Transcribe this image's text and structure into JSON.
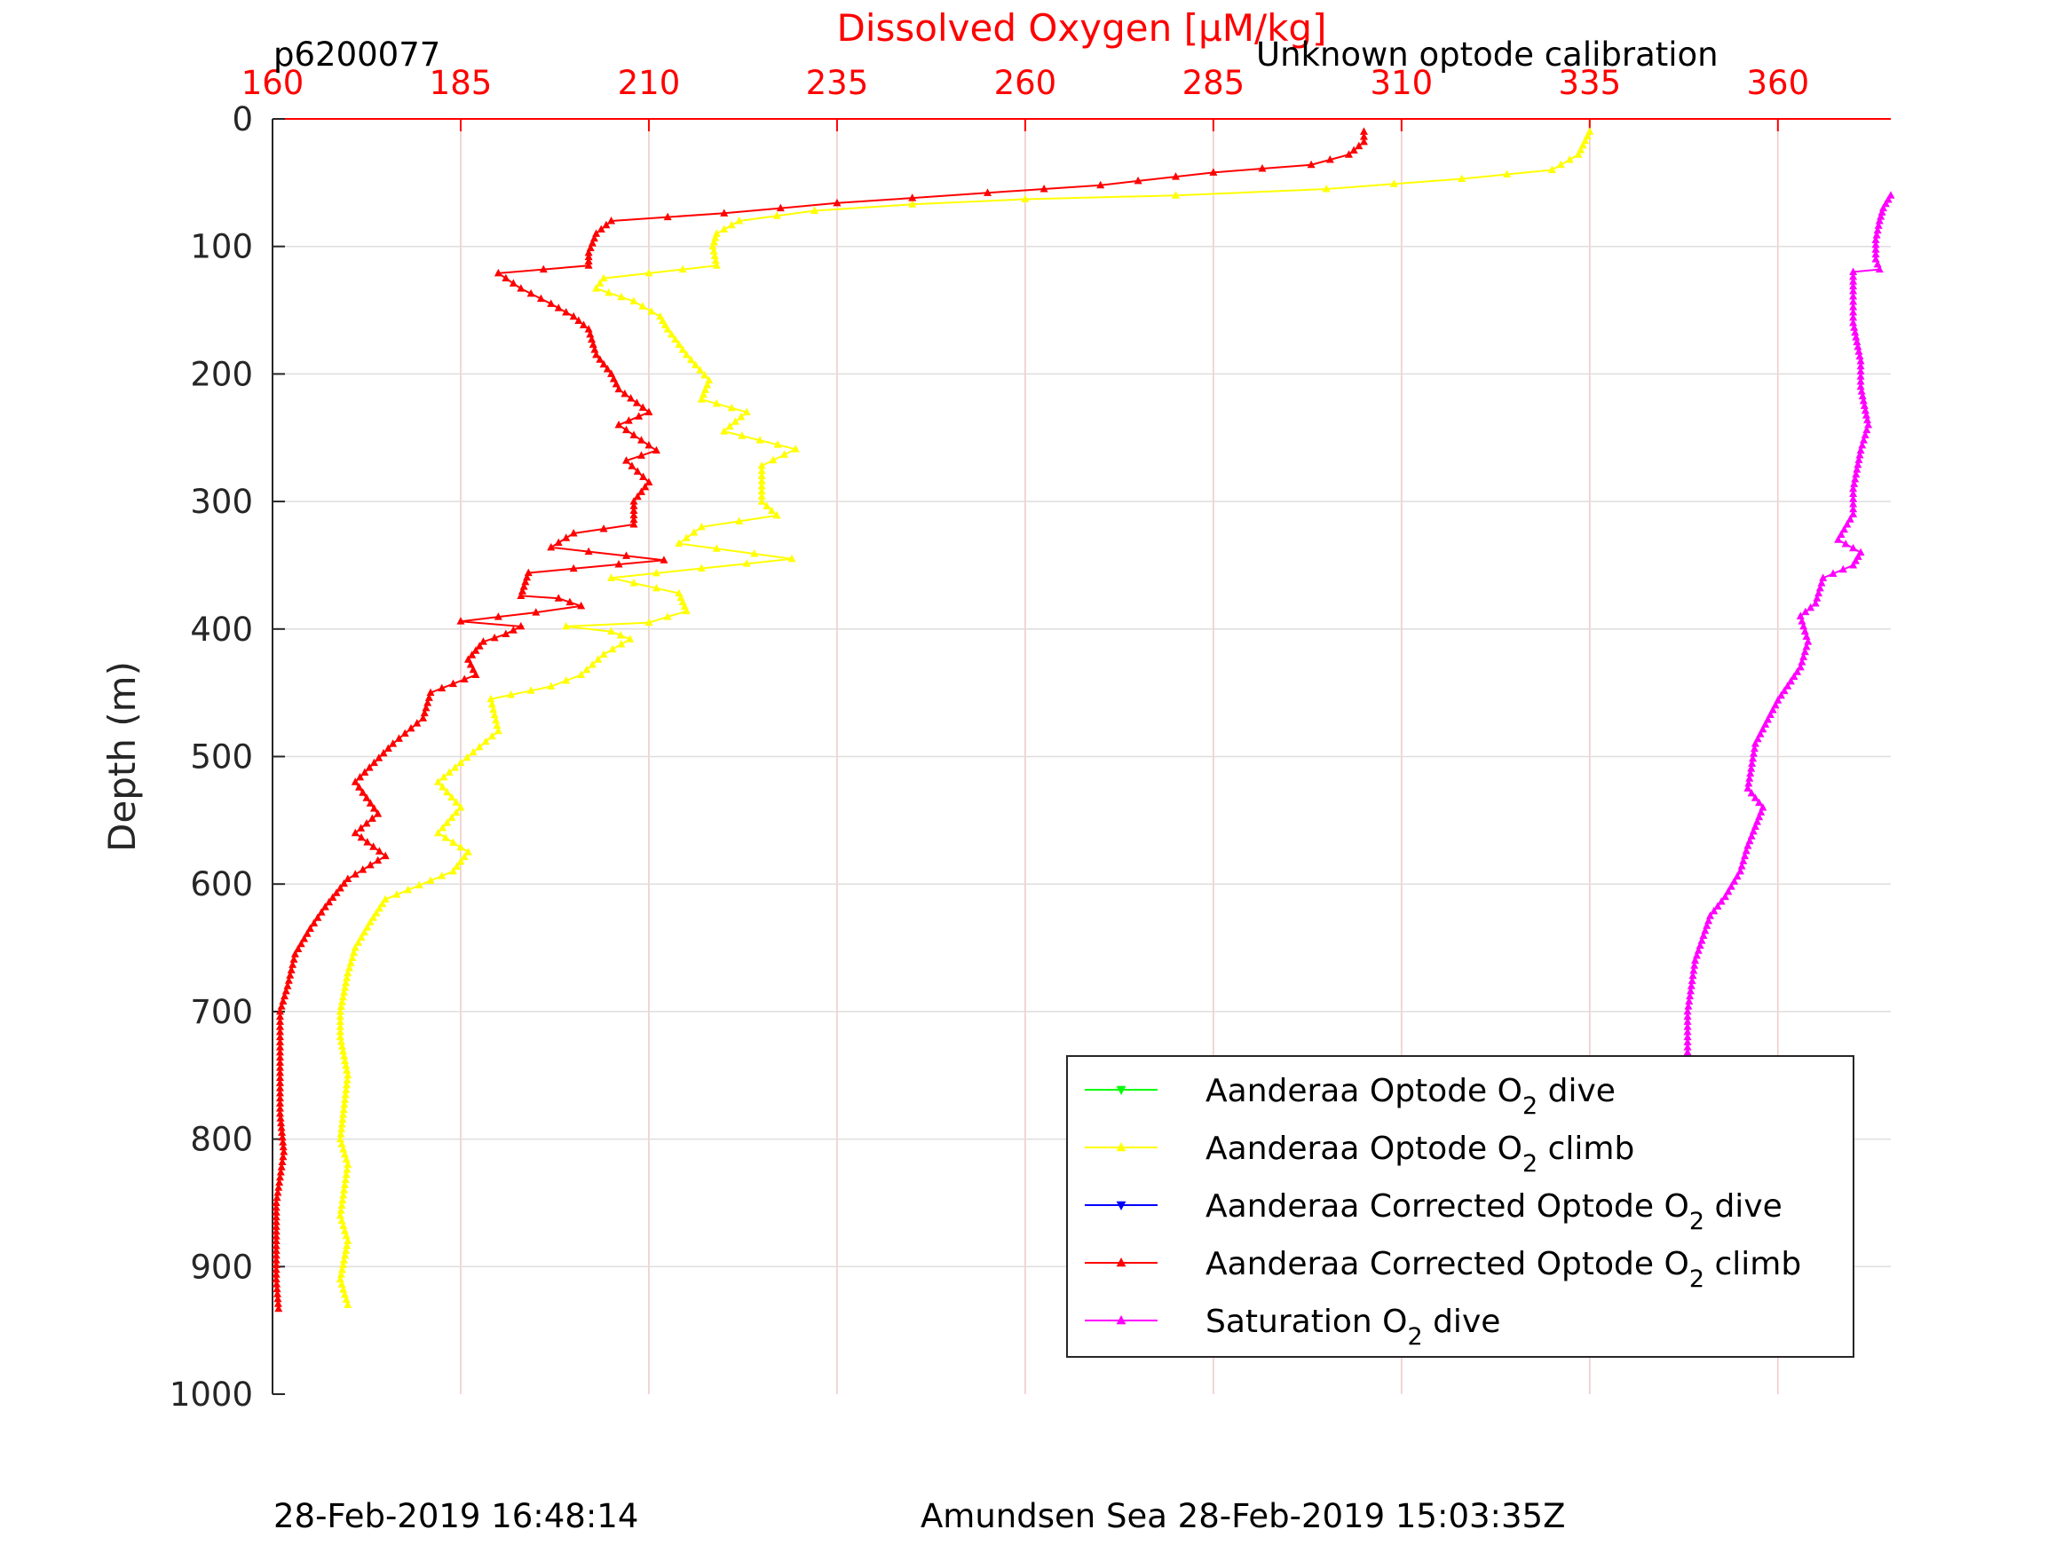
{
  "header": {
    "profile_id": "p6200077",
    "calibration_note": "Unknown optode calibration"
  },
  "footer": {
    "plot_timestamp": "28-Feb-2019 16:48:14",
    "location_time": "Amundsen Sea 28-Feb-2019 15:03:35Z"
  },
  "chart_data": {
    "type": "line",
    "xlabel": "Dissolved Oxygen [μM/kg]",
    "ylabel": "Depth (m)",
    "xlim": [
      160,
      375
    ],
    "ylim": [
      0,
      1000
    ],
    "y_reversed": true,
    "x_axis_position": "top",
    "x_ticks": [
      160,
      185,
      210,
      235,
      260,
      285,
      310,
      335,
      360
    ],
    "y_ticks": [
      0,
      100,
      200,
      300,
      400,
      500,
      600,
      700,
      800,
      900,
      1000
    ],
    "grid": true,
    "legend_position": "bottom-right",
    "colors": {
      "x_axis": "#ff0000",
      "grid": "#f0c8c8",
      "hgrid": "#dedede",
      "axes": "#262626"
    },
    "legend": [
      {
        "prefix": "Aanderaa Optode O",
        "sub": "2",
        "suffix": " dive",
        "color": "#00ff00",
        "marker": "triangle-down"
      },
      {
        "prefix": "Aanderaa Optode O",
        "sub": "2",
        "suffix": " climb",
        "color": "#ffff00",
        "marker": "triangle-up"
      },
      {
        "prefix": "Aanderaa Corrected Optode O",
        "sub": "2",
        "suffix": " dive",
        "color": "#0000ff",
        "marker": "triangle-down"
      },
      {
        "prefix": "Aanderaa Corrected Optode O",
        "sub": "2",
        "suffix": " climb",
        "color": "#ff0000",
        "marker": "triangle-up"
      },
      {
        "prefix": "Saturation O",
        "sub": "2",
        "suffix": " dive",
        "color": "#ff00ff",
        "marker": "triangle-up"
      }
    ],
    "series": [
      {
        "name": "Aanderaa Optode O2 climb",
        "color": "#ffff00",
        "points": [
          [
            335,
            10
          ],
          [
            333.5,
            28
          ],
          [
            330,
            40
          ],
          [
            318,
            47
          ],
          [
            300,
            55
          ],
          [
            280,
            60
          ],
          [
            260,
            63
          ],
          [
            245,
            67
          ],
          [
            232,
            72
          ],
          [
            222,
            80
          ],
          [
            219,
            90
          ],
          [
            218.5,
            100
          ],
          [
            219,
            115
          ],
          [
            210,
            121
          ],
          [
            204,
            125
          ],
          [
            203,
            133
          ],
          [
            208,
            143
          ],
          [
            211.5,
            155
          ],
          [
            212.5,
            165
          ],
          [
            215,
            185
          ],
          [
            218,
            205
          ],
          [
            217,
            220
          ],
          [
            223,
            230
          ],
          [
            220,
            245
          ],
          [
            229.5,
            259
          ],
          [
            225,
            272
          ],
          [
            225,
            300
          ],
          [
            227,
            311
          ],
          [
            217,
            320
          ],
          [
            214,
            333
          ],
          [
            229,
            345
          ],
          [
            205,
            360
          ],
          [
            214,
            372
          ],
          [
            215,
            386
          ],
          [
            210,
            395
          ],
          [
            199,
            398
          ],
          [
            205,
            402
          ],
          [
            207.5,
            408
          ],
          [
            204,
            420
          ],
          [
            201,
            436
          ],
          [
            197,
            445
          ],
          [
            189,
            455
          ],
          [
            190,
            480
          ],
          [
            185,
            505
          ],
          [
            182,
            520
          ],
          [
            185,
            540
          ],
          [
            182,
            560
          ],
          [
            186,
            575
          ],
          [
            184,
            590
          ],
          [
            175,
            612
          ],
          [
            173,
            630
          ],
          [
            171,
            650
          ],
          [
            170,
            670
          ],
          [
            169,
            700
          ],
          [
            169,
            720
          ],
          [
            170,
            750
          ],
          [
            169,
            800
          ],
          [
            170,
            820
          ],
          [
            169,
            860
          ],
          [
            170,
            880
          ],
          [
            169,
            910
          ],
          [
            170,
            930
          ]
        ]
      },
      {
        "name": "Aanderaa Corrected Optode O2 climb",
        "color": "#ff0000",
        "points": [
          [
            305,
            10
          ],
          [
            305,
            18
          ],
          [
            303,
            28
          ],
          [
            298,
            36
          ],
          [
            285,
            42
          ],
          [
            270,
            52
          ],
          [
            255,
            58
          ],
          [
            235,
            66
          ],
          [
            220,
            74
          ],
          [
            205,
            80
          ],
          [
            203,
            90
          ],
          [
            202,
            105
          ],
          [
            202,
            115
          ],
          [
            190,
            121
          ],
          [
            191,
            125
          ],
          [
            193,
            133
          ],
          [
            197,
            145
          ],
          [
            200,
            155
          ],
          [
            202,
            165
          ],
          [
            203,
            185
          ],
          [
            205,
            200
          ],
          [
            206,
            212
          ],
          [
            210,
            230
          ],
          [
            206,
            240
          ],
          [
            211,
            260
          ],
          [
            207,
            268
          ],
          [
            210,
            285
          ],
          [
            208,
            300
          ],
          [
            208,
            318
          ],
          [
            200,
            325
          ],
          [
            197,
            336
          ],
          [
            212,
            346
          ],
          [
            194,
            356
          ],
          [
            193,
            374
          ],
          [
            198,
            376
          ],
          [
            201,
            382
          ],
          [
            195,
            387
          ],
          [
            185,
            394
          ],
          [
            193,
            398
          ],
          [
            191,
            404
          ],
          [
            188,
            410
          ],
          [
            186,
            424
          ],
          [
            187,
            436
          ],
          [
            181,
            450
          ],
          [
            180,
            470
          ],
          [
            176,
            490
          ],
          [
            171,
            520
          ],
          [
            174,
            545
          ],
          [
            171,
            560
          ],
          [
            175,
            578
          ],
          [
            170,
            596
          ],
          [
            167,
            618
          ],
          [
            165,
            635
          ],
          [
            163,
            655
          ],
          [
            162,
            680
          ],
          [
            161,
            700
          ],
          [
            161,
            740
          ],
          [
            161,
            780
          ],
          [
            161.5,
            810
          ],
          [
            160.5,
            850
          ],
          [
            160.5,
            880
          ],
          [
            160.5,
            910
          ],
          [
            160.8,
            933
          ]
        ]
      },
      {
        "name": "Saturation O2 dive",
        "color": "#ff00ff",
        "points": [
          [
            375,
            60
          ],
          [
            374,
            70
          ],
          [
            373.5,
            80
          ],
          [
            373,
            95
          ],
          [
            373,
            110
          ],
          [
            373.5,
            118
          ],
          [
            370,
            120
          ],
          [
            370,
            135
          ],
          [
            370,
            160
          ],
          [
            371,
            190
          ],
          [
            371,
            210
          ],
          [
            372,
            240
          ],
          [
            371,
            260
          ],
          [
            370,
            290
          ],
          [
            370,
            310
          ],
          [
            368,
            330
          ],
          [
            371,
            340
          ],
          [
            370,
            350
          ],
          [
            366,
            360
          ],
          [
            365,
            380
          ],
          [
            363,
            390
          ],
          [
            364,
            410
          ],
          [
            363,
            430
          ],
          [
            360,
            456
          ],
          [
            357,
            490
          ],
          [
            356,
            525
          ],
          [
            358,
            540
          ],
          [
            356,
            570
          ],
          [
            355,
            590
          ],
          [
            353,
            610
          ],
          [
            351,
            625
          ],
          [
            349,
            660
          ],
          [
            348,
            700
          ],
          [
            348,
            740
          ],
          [
            348,
            780
          ],
          [
            348,
            820
          ],
          [
            348,
            860
          ],
          [
            348,
            900
          ],
          [
            348,
            925
          ]
        ]
      }
    ]
  }
}
